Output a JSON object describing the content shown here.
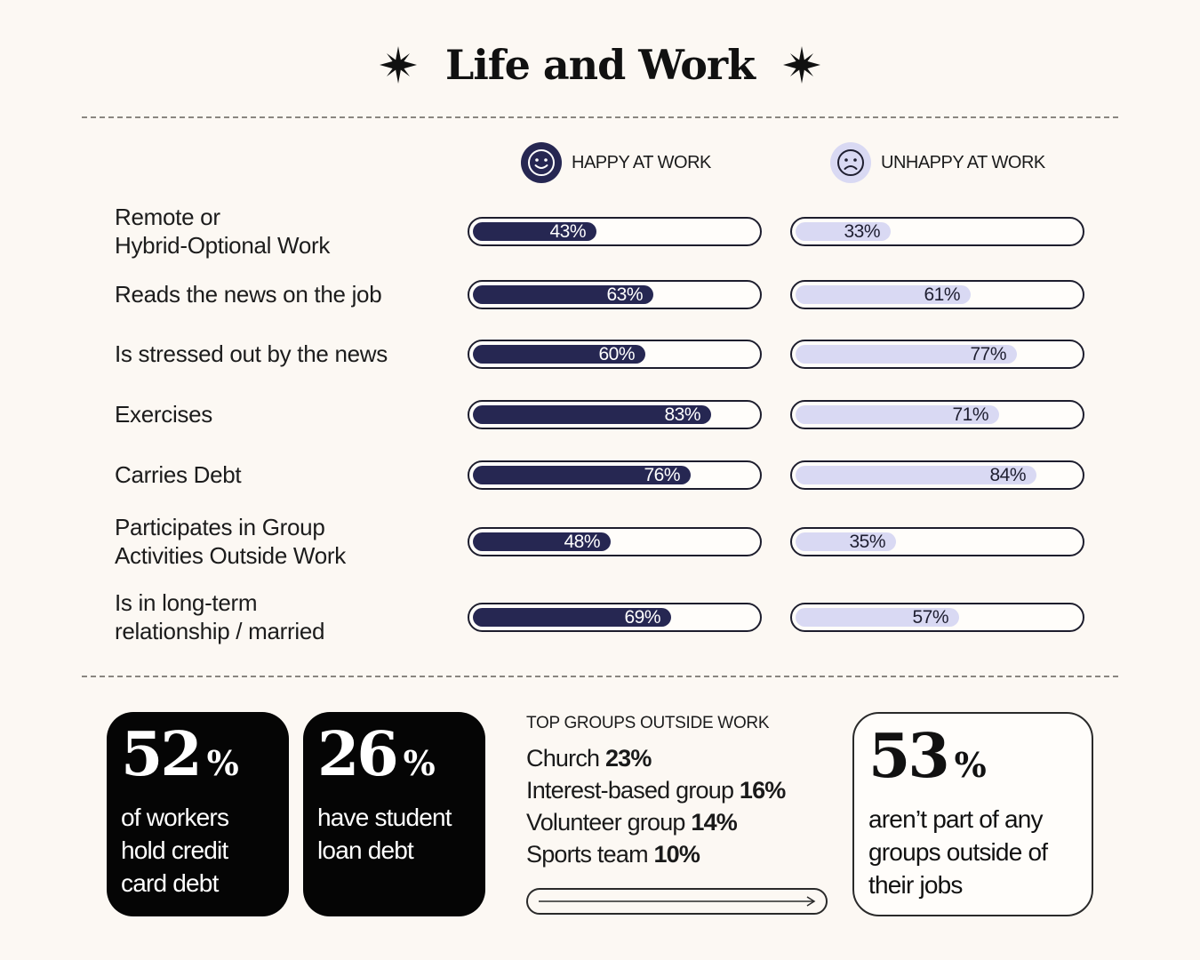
{
  "title": "Life and Work",
  "legend": {
    "happy_label": "HAPPY AT WORK",
    "unhappy_label": "UNHAPPY AT WORK"
  },
  "chart_data": {
    "type": "bar",
    "categories": [
      "Remote or\nHybrid-Optional Work",
      "Reads the news on the job",
      "Is stressed out by the news",
      "Exercises",
      "Carries Debt",
      "Participates in Group\nActivities Outside Work",
      "Is in long-term\nrelationship / married"
    ],
    "series": [
      {
        "name": "HAPPY AT WORK",
        "values": [
          43,
          63,
          60,
          83,
          76,
          48,
          69
        ]
      },
      {
        "name": "UNHAPPY AT WORK",
        "values": [
          33,
          61,
          77,
          71,
          84,
          35,
          57
        ]
      }
    ],
    "value_labels": {
      "happy": [
        "43%",
        "63%",
        "60%",
        "83%",
        "76%",
        "48%",
        "69%"
      ],
      "unhappy": [
        "33%",
        "61%",
        "77%",
        "71%",
        "84%",
        "35%",
        "57%"
      ]
    },
    "ylim": [
      0,
      100
    ],
    "colors": {
      "happy": "#262752",
      "unhappy": "#d9d9f3"
    }
  },
  "stats": [
    {
      "number": "52",
      "unit": "%",
      "text": "of workers\nhold credit\ncard debt"
    },
    {
      "number": "26",
      "unit": "%",
      "text": "have student\nloan debt"
    }
  ],
  "groups": {
    "title": "TOP GROUPS OUTSIDE WORK",
    "items": [
      {
        "name": "Church",
        "value": "23%"
      },
      {
        "name": "Interest-based group",
        "value": "16%"
      },
      {
        "name": "Volunteer group",
        "value": "14%"
      },
      {
        "name": "Sports team",
        "value": "10%"
      }
    ]
  },
  "no_groups_stat": {
    "number": "53",
    "unit": "%",
    "text": "aren’t part of any\ngroups outside of\ntheir jobs"
  },
  "icons": {
    "title_decoration": "sparkle-star-icon",
    "happy": "smiley-face-icon",
    "unhappy": "frowning-face-icon",
    "arrow": "arrow-right-icon"
  }
}
